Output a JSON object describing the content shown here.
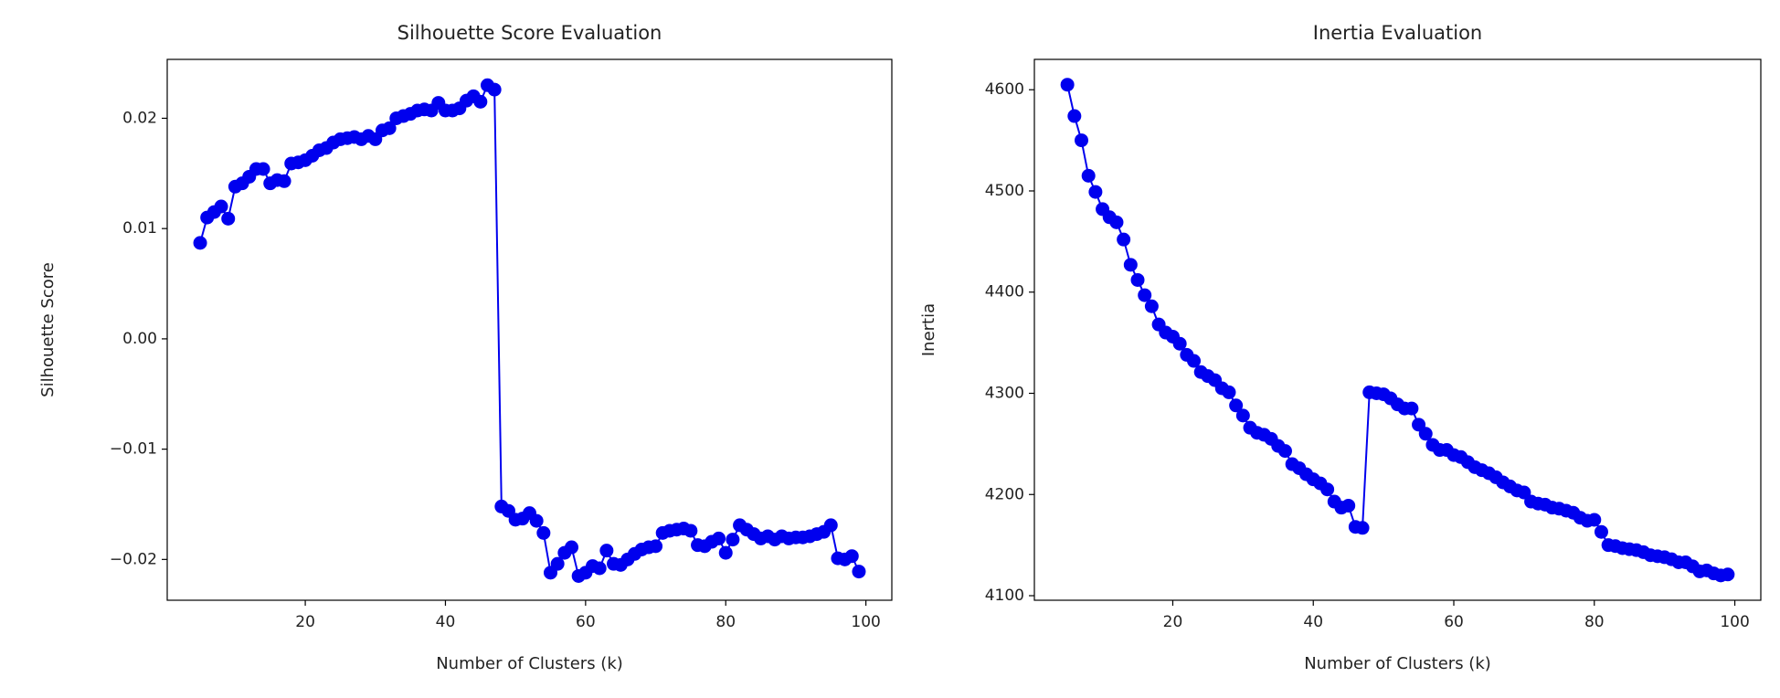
{
  "chart_data": [
    {
      "type": "line",
      "title": "Silhouette Score Evaluation",
      "x_label": "Number of Clusters (k)",
      "y_label": "Silhouette Score",
      "x": [
        5,
        6,
        7,
        8,
        9,
        10,
        11,
        12,
        13,
        14,
        15,
        16,
        17,
        18,
        19,
        20,
        21,
        22,
        23,
        24,
        25,
        26,
        27,
        28,
        29,
        30,
        31,
        32,
        33,
        34,
        35,
        36,
        37,
        38,
        39,
        40,
        41,
        42,
        43,
        44,
        45,
        46,
        47,
        48,
        49,
        50,
        51,
        52,
        53,
        54,
        55,
        56,
        57,
        58,
        59,
        60,
        61,
        62,
        63,
        64,
        65,
        66,
        67,
        68,
        69,
        70,
        71,
        72,
        73,
        74,
        75,
        76,
        77,
        78,
        79,
        80,
        81,
        82,
        83,
        84,
        85,
        86,
        87,
        88,
        89,
        90,
        91,
        92,
        93,
        94,
        95,
        96,
        97,
        98,
        99
      ],
      "values": [
        0.0087,
        0.011,
        0.0115,
        0.012,
        0.0109,
        0.0138,
        0.0141,
        0.0147,
        0.0154,
        0.0154,
        0.0141,
        0.0144,
        0.0143,
        0.0159,
        0.016,
        0.0162,
        0.0166,
        0.0171,
        0.0173,
        0.0178,
        0.0181,
        0.0182,
        0.0183,
        0.0181,
        0.0184,
        0.0181,
        0.0189,
        0.0191,
        0.02,
        0.0202,
        0.0204,
        0.0207,
        0.0208,
        0.0207,
        0.0214,
        0.0207,
        0.0207,
        0.0209,
        0.0216,
        0.022,
        0.0215,
        0.023,
        0.0226,
        -0.0152,
        -0.0156,
        -0.0164,
        -0.0163,
        -0.0158,
        -0.0165,
        -0.0176,
        -0.0212,
        -0.0204,
        -0.0194,
        -0.0189,
        -0.0215,
        -0.0212,
        -0.0206,
        -0.0208,
        -0.0192,
        -0.0204,
        -0.0205,
        -0.02,
        -0.0195,
        -0.0191,
        -0.0189,
        -0.0188,
        -0.0176,
        -0.0174,
        -0.0173,
        -0.0172,
        -0.0174,
        -0.0187,
        -0.0188,
        -0.0184,
        -0.0181,
        -0.0194,
        -0.0182,
        -0.0169,
        -0.0173,
        -0.0177,
        -0.0181,
        -0.0179,
        -0.0182,
        -0.0179,
        -0.0181,
        -0.018,
        -0.018,
        -0.0179,
        -0.0177,
        -0.0175,
        -0.0169,
        -0.0199,
        -0.02,
        -0.0197,
        -0.0211
      ],
      "color": "#0000ee",
      "marker": "circle",
      "xlim": [
        0.3,
        103.7
      ],
      "xticks": [
        20,
        40,
        60,
        80,
        100
      ],
      "ylim": [
        -0.0237,
        0.02534
      ],
      "yticks": [
        {
          "value": -0.02,
          "label": "−0.02"
        },
        {
          "value": -0.01,
          "label": "−0.01"
        },
        {
          "value": 0,
          "label": "0.00"
        },
        0.01,
        0.02
      ]
    },
    {
      "type": "line",
      "title": "Inertia Evaluation",
      "x_label": "Number of Clusters (k)",
      "y_label": "Inertia",
      "x": [
        5,
        6,
        7,
        8,
        9,
        10,
        11,
        12,
        13,
        14,
        15,
        16,
        17,
        18,
        19,
        20,
        21,
        22,
        23,
        24,
        25,
        26,
        27,
        28,
        29,
        30,
        31,
        32,
        33,
        34,
        35,
        36,
        37,
        38,
        39,
        40,
        41,
        42,
        43,
        44,
        45,
        46,
        47,
        48,
        49,
        50,
        51,
        52,
        53,
        54,
        55,
        56,
        57,
        58,
        59,
        60,
        61,
        62,
        63,
        64,
        65,
        66,
        67,
        68,
        69,
        70,
        71,
        72,
        73,
        74,
        75,
        76,
        77,
        78,
        79,
        80,
        81,
        82,
        83,
        84,
        85,
        86,
        87,
        88,
        89,
        90,
        91,
        92,
        93,
        94,
        95,
        96,
        97,
        98,
        99
      ],
      "values": [
        4605,
        4574,
        4550,
        4515,
        4499,
        4482,
        4474,
        4469,
        4452,
        4427,
        4412,
        4397,
        4386,
        4368,
        4360,
        4356,
        4349,
        4338,
        4332,
        4321,
        4317,
        4313,
        4305,
        4301,
        4288,
        4278,
        4266,
        4261,
        4259,
        4255,
        4248,
        4243,
        4230,
        4226,
        4220,
        4215,
        4211,
        4205,
        4193,
        4187,
        4189,
        4168,
        4167,
        4301,
        4300,
        4299,
        4295,
        4289,
        4285,
        4285,
        4269,
        4260,
        4249,
        4244,
        4244,
        4239,
        4237,
        4232,
        4227,
        4224,
        4221,
        4217,
        4212,
        4208,
        4204,
        4202,
        4193,
        4191,
        4190,
        4187,
        4186,
        4184,
        4182,
        4177,
        4174,
        4175,
        4163,
        4150,
        4149,
        4147,
        4146,
        4145,
        4143,
        4140,
        4139,
        4138,
        4136,
        4133,
        4133,
        4129,
        4124,
        4125,
        4122,
        4120,
        4121
      ],
      "color": "#0000ee",
      "marker": "circle",
      "xlim": [
        0.3,
        103.7
      ],
      "xticks": [
        20,
        40,
        60,
        80,
        100
      ],
      "ylim": [
        4095.5,
        4630
      ],
      "yticks": [
        4100,
        4200,
        4300,
        4400,
        4500,
        4600
      ]
    }
  ]
}
